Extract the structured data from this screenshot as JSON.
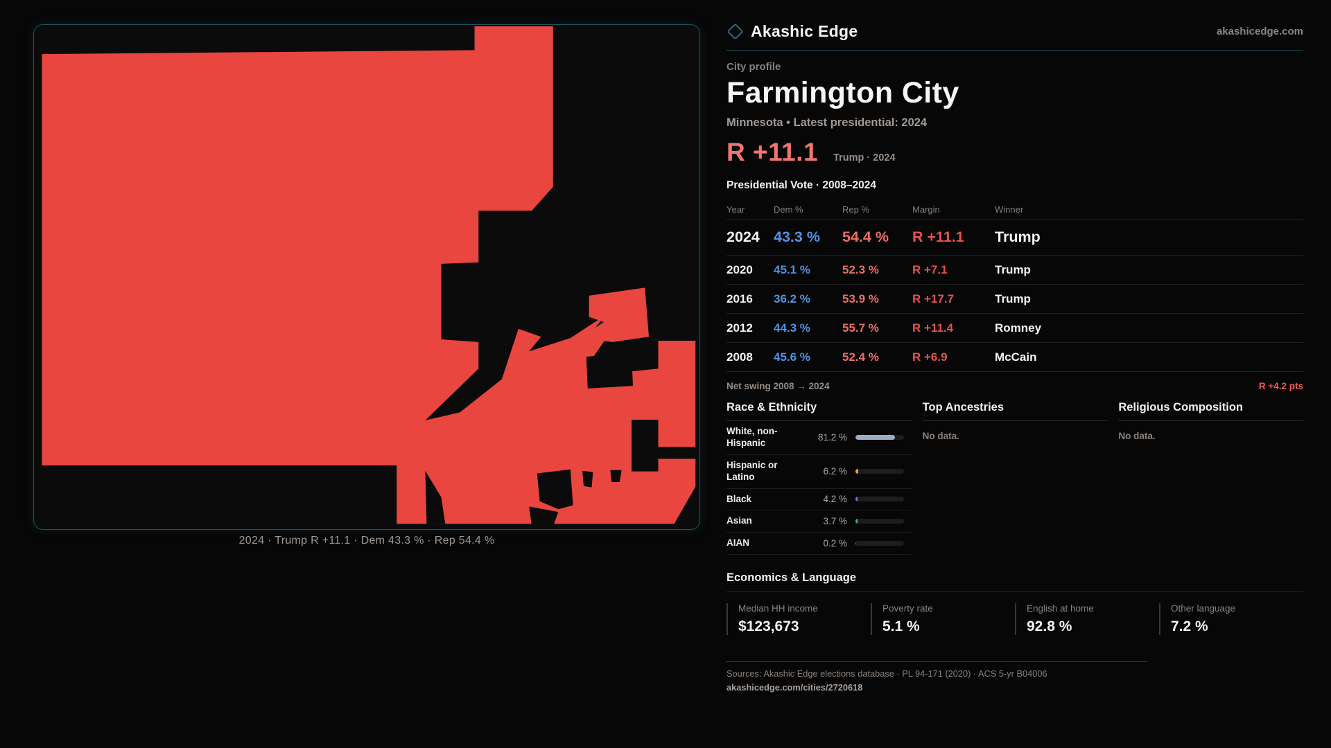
{
  "brand": {
    "name": "Akashic Edge",
    "domain": "akashicedge.com"
  },
  "profile": {
    "kicker": "City profile",
    "title": "Farmington City",
    "subtitle": "Minnesota • Latest presidential: 2024"
  },
  "headline": {
    "margin": "R +11.1",
    "context": "Trump · 2024"
  },
  "vote_table": {
    "title": "Presidential Vote · 2008–2024",
    "columns": [
      "Year",
      "Dem %",
      "Rep %",
      "Margin",
      "Winner"
    ],
    "rows": [
      {
        "year": "2024",
        "dem": "43.3 %",
        "rep": "54.4 %",
        "margin": "R +11.1",
        "winner": "Trump",
        "latest": true
      },
      {
        "year": "2020",
        "dem": "45.1 %",
        "rep": "52.3 %",
        "margin": "R +7.1",
        "winner": "Trump",
        "latest": false
      },
      {
        "year": "2016",
        "dem": "36.2 %",
        "rep": "53.9 %",
        "margin": "R +17.7",
        "winner": "Trump",
        "latest": false
      },
      {
        "year": "2012",
        "dem": "44.3 %",
        "rep": "55.7 %",
        "margin": "R +11.4",
        "winner": "Romney",
        "latest": false
      },
      {
        "year": "2008",
        "dem": "45.6 %",
        "rep": "52.4 %",
        "margin": "R +6.9",
        "winner": "McCain",
        "latest": false
      }
    ]
  },
  "net_swing": {
    "label": "Net swing 2008 → 2024",
    "value": "R +4.2 pts"
  },
  "race": {
    "title": "Race & Ethnicity",
    "rows": [
      {
        "label": "White, non-Hispanic",
        "value": "81.2 %",
        "pct": 81.2,
        "color": "#9dadc6"
      },
      {
        "label": "Hispanic or Latino",
        "value": "6.2 %",
        "pct": 6.2,
        "color": "#e8a33d"
      },
      {
        "label": "Black",
        "value": "4.2 %",
        "pct": 4.2,
        "color": "#8a70d6"
      },
      {
        "label": "Asian",
        "value": "3.7 %",
        "pct": 3.7,
        "color": "#36bd8b"
      },
      {
        "label": "AIAN",
        "value": "0.2 %",
        "pct": 0.2,
        "color": "#6f6f6f"
      }
    ]
  },
  "ancestries": {
    "title": "Top Ancestries",
    "empty": "No data."
  },
  "religion": {
    "title": "Religious Composition",
    "empty": "No data."
  },
  "economics": {
    "title": "Economics & Language",
    "stats": [
      {
        "label": "Median HH income",
        "value": "$123,673"
      },
      {
        "label": "Poverty rate",
        "value": "5.1 %"
      },
      {
        "label": "English at home",
        "value": "92.8 %"
      },
      {
        "label": "Other language",
        "value": "7.2 %"
      }
    ]
  },
  "footer": {
    "sources": "Sources: Akashic Edge elections database · PL 94-171 (2020) · ACS 5-yr B04006",
    "permalink": "akashicedge.com/cities/2720618"
  },
  "map": {
    "caption": "2024 · Trump R +11.1 · Dem 43.3 % · Rep 54.4 %",
    "fill": "#e8463f",
    "background": "#0b0b0c"
  },
  "colors": {
    "dem": "#5493e0",
    "rep": "#ee6d66",
    "margin": "#e6544c",
    "swing": "#ef5a52"
  }
}
